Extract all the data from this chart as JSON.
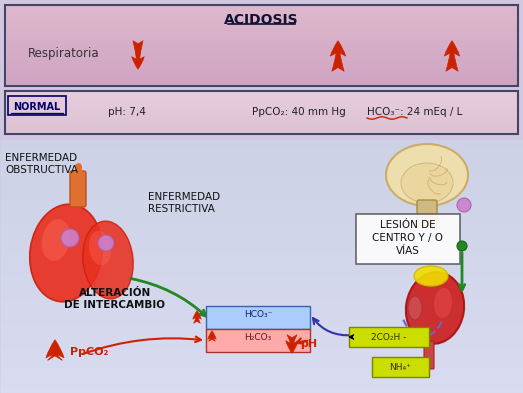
{
  "title": "ACIDOSIS",
  "label_respiratoria": "Respiratoria",
  "label_normal": "NORMAL",
  "label_ph": "pH: 7,4",
  "label_ppco2_normal": "PpCO₂: 40 mm Hg",
  "label_hco3_normal": "HCO₃⁻: 24 mEq / L",
  "label_enf_obstructiva": "ENFERMEDAD\nOBSTRUCTIVA",
  "label_enf_restrictiva": "ENFERMEDAD\nRESTRICTIVA",
  "label_lesion": "LESIÓN DE\nCENTRO Y / O\nVÍAS",
  "label_alteracion": "ALTERACIÓN\nDE INTERCAMBIO",
  "label_ppco2_arrow": "PpCO₂",
  "label_hco3_box": "HCO₃⁻",
  "label_h2co3": "H₂CO₃",
  "label_ph_arrow": "pH",
  "label_2co2h": "2CO₂H -",
  "label_nh4": "NH₄⁺",
  "red_color": "#cc2200",
  "green_color": "#228822",
  "blue_color": "#4444bb",
  "fig_w": 5.23,
  "fig_h": 3.93,
  "dpi": 100
}
